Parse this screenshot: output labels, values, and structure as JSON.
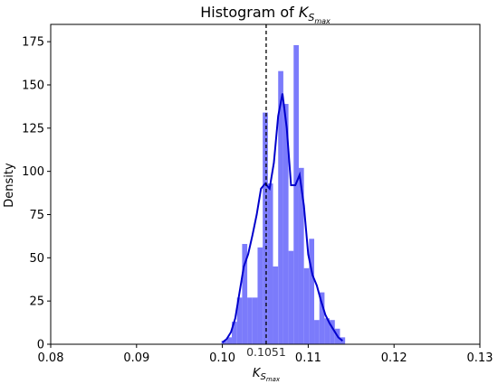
{
  "chart_data": {
    "type": "bar",
    "title_main": "Histogram of ",
    "title_symbol": "K",
    "title_subscript": "S",
    "title_subsubscript": "max",
    "xlabel_symbol": "K",
    "xlabel_subscript": "S",
    "xlabel_subsubscript": "max",
    "ylabel": "Density",
    "xlim": [
      0.08,
      0.13
    ],
    "ylim": [
      0,
      185
    ],
    "xticks": [
      "0.08",
      "0.09",
      "0.10",
      "0.11",
      "0.12",
      "0.13"
    ],
    "xtick_values": [
      0.08,
      0.09,
      0.1,
      0.11,
      0.12,
      0.13
    ],
    "yticks": [
      "0",
      "25",
      "50",
      "75",
      "100",
      "125",
      "150",
      "175"
    ],
    "ytick_values": [
      0,
      25,
      50,
      75,
      100,
      125,
      150,
      175
    ],
    "bin_width": 0.0006,
    "bins": [
      {
        "x": 0.1002,
        "y": 2
      },
      {
        "x": 0.1008,
        "y": 4
      },
      {
        "x": 0.1014,
        "y": 13
      },
      {
        "x": 0.102,
        "y": 27
      },
      {
        "x": 0.1026,
        "y": 58
      },
      {
        "x": 0.1032,
        "y": 27
      },
      {
        "x": 0.1038,
        "y": 27
      },
      {
        "x": 0.1044,
        "y": 56
      },
      {
        "x": 0.105,
        "y": 134
      },
      {
        "x": 0.1056,
        "y": 93
      },
      {
        "x": 0.1062,
        "y": 45
      },
      {
        "x": 0.1068,
        "y": 158
      },
      {
        "x": 0.1074,
        "y": 139
      },
      {
        "x": 0.108,
        "y": 54
      },
      {
        "x": 0.1086,
        "y": 173
      },
      {
        "x": 0.1092,
        "y": 102
      },
      {
        "x": 0.1098,
        "y": 44
      },
      {
        "x": 0.1104,
        "y": 61
      },
      {
        "x": 0.111,
        "y": 14
      },
      {
        "x": 0.1116,
        "y": 30
      },
      {
        "x": 0.1122,
        "y": 15
      },
      {
        "x": 0.1128,
        "y": 14
      },
      {
        "x": 0.1134,
        "y": 9
      },
      {
        "x": 0.114,
        "y": 4
      }
    ],
    "kde": {
      "x": [
        0.1,
        0.1005,
        0.101,
        0.1015,
        0.102,
        0.1025,
        0.103,
        0.1035,
        0.104,
        0.1045,
        0.105,
        0.1055,
        0.106,
        0.1065,
        0.107,
        0.1075,
        0.108,
        0.1085,
        0.109,
        0.1095,
        0.11,
        0.1105,
        0.111,
        0.1115,
        0.112,
        0.1125,
        0.113,
        0.1135,
        0.114
      ],
      "y": [
        1,
        3,
        7,
        15,
        30,
        45,
        52,
        63,
        75,
        90,
        93,
        90,
        105,
        132,
        145,
        125,
        92,
        92,
        98,
        80,
        52,
        40,
        34,
        25,
        17,
        12,
        8,
        4,
        2
      ]
    },
    "vline": {
      "x": 0.1051,
      "label": "0.1051"
    },
    "bar_color": "#7b7bfb",
    "kde_color": "#0000cc",
    "vline_color": "#000000",
    "grid": false,
    "legend": "none"
  }
}
